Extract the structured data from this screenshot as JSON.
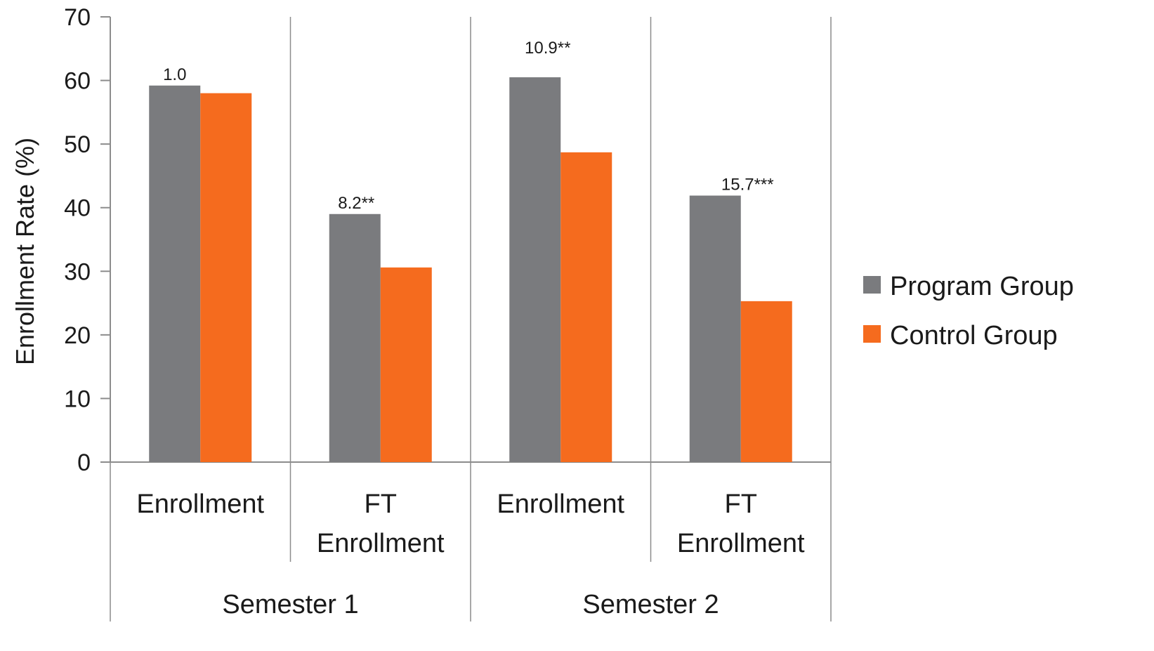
{
  "chart_data": {
    "type": "bar",
    "ylabel": "Enrollment Rate (%)",
    "ylim": [
      0,
      70
    ],
    "yticks": [
      "0",
      "10",
      "20",
      "30",
      "40",
      "50",
      "60",
      "70"
    ],
    "grid": false,
    "legend_position": "right",
    "groups": [
      "Semester 1",
      "Semester 2"
    ],
    "categories": [
      "Enrollment",
      "FT Enrollment",
      "Enrollment",
      "FT Enrollment"
    ],
    "category_lines": [
      [
        "Enrollment"
      ],
      [
        "FT",
        "Enrollment"
      ],
      [
        "Enrollment"
      ],
      [
        "FT",
        "Enrollment"
      ]
    ],
    "series": [
      {
        "name": "Program Group",
        "color": "#7a7b7e",
        "values": [
          59.2,
          39.0,
          60.5,
          41.9
        ]
      },
      {
        "name": "Control Group",
        "color": "#f56b1e",
        "values": [
          58.0,
          30.6,
          48.7,
          25.3
        ]
      }
    ],
    "annotations": [
      "1.0",
      "8.2**",
      "10.9**",
      "15.7***"
    ]
  }
}
